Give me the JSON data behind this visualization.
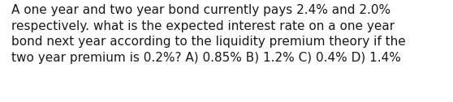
{
  "text": "A one year and two year bond currently pays 2.4% and 2.0%\nrespectively. what is the expected interest rate on a one year\nbond next year according to the liquidity premium theory if the\ntwo year premium is 0.2%? A) 0.85% B) 1.2% C) 0.4% D) 1.4%",
  "background_color": "#ffffff",
  "text_color": "#1a1a1a",
  "font_size": 11.0,
  "font_family": "DejaVu Sans",
  "fig_width": 5.58,
  "fig_height": 1.26,
  "dpi": 100
}
